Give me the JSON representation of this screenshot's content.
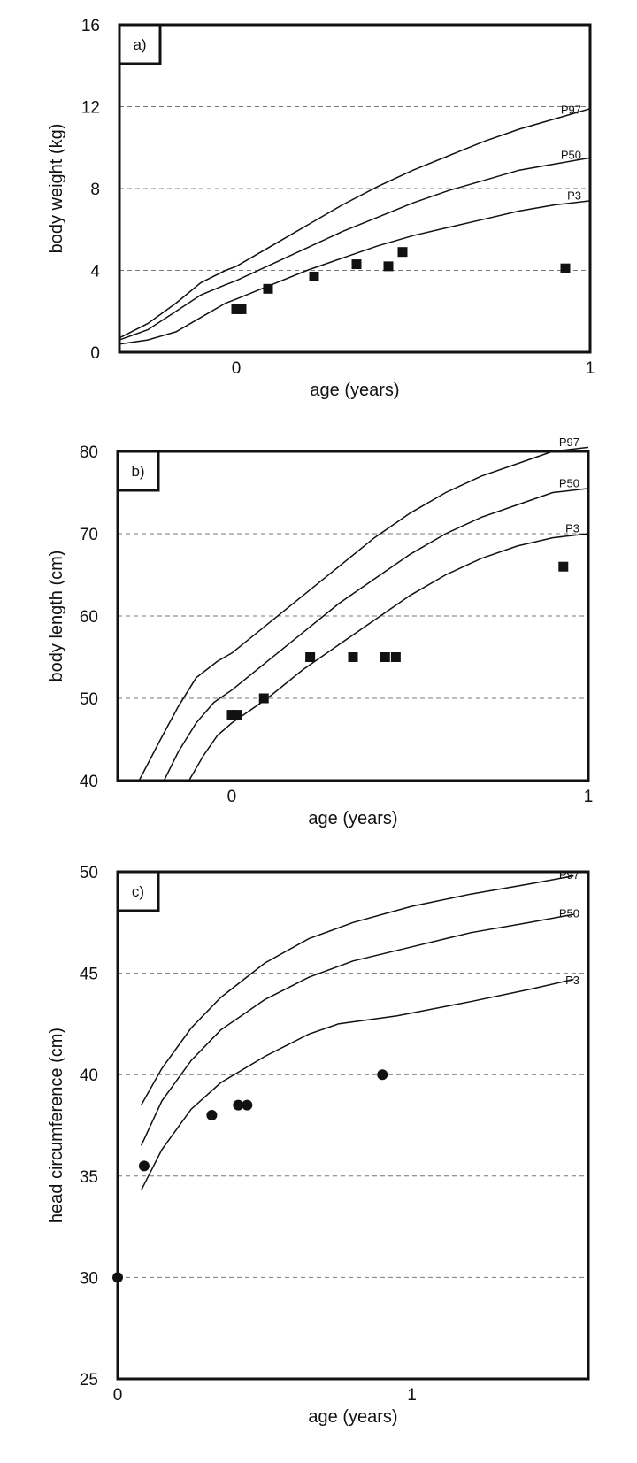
{
  "chart_data": [
    {
      "type": "line",
      "panel_label": "a)",
      "xlabel": "age (years)",
      "ylabel": "body weight (kg)",
      "xlim": [
        -0.33,
        1.0
      ],
      "ylim": [
        0,
        16
      ],
      "xticks": [
        0,
        1
      ],
      "yticks": [
        0,
        4,
        8,
        12,
        16
      ],
      "grid_dashed_y": [
        4,
        8,
        12
      ],
      "marker": "square",
      "series": [
        {
          "name": "P97",
          "x": [
            -0.33,
            -0.25,
            -0.17,
            -0.1,
            -0.03,
            0.0,
            0.1,
            0.2,
            0.3,
            0.4,
            0.5,
            0.6,
            0.7,
            0.8,
            0.9,
            1.0
          ],
          "y": [
            0.7,
            1.4,
            2.4,
            3.4,
            4.0,
            4.2,
            5.2,
            6.2,
            7.2,
            8.1,
            8.9,
            9.6,
            10.3,
            10.9,
            11.4,
            11.9
          ]
        },
        {
          "name": "P50",
          "x": [
            -0.33,
            -0.25,
            -0.17,
            -0.1,
            -0.03,
            0.0,
            0.1,
            0.2,
            0.3,
            0.4,
            0.5,
            0.6,
            0.7,
            0.8,
            0.9,
            1.0
          ],
          "y": [
            0.6,
            1.1,
            2.0,
            2.8,
            3.3,
            3.5,
            4.3,
            5.1,
            5.9,
            6.6,
            7.3,
            7.9,
            8.4,
            8.9,
            9.2,
            9.5
          ]
        },
        {
          "name": "P3",
          "x": [
            -0.33,
            -0.25,
            -0.17,
            -0.1,
            -0.03,
            0.0,
            0.1,
            0.2,
            0.3,
            0.4,
            0.5,
            0.6,
            0.7,
            0.8,
            0.9,
            1.0
          ],
          "y": [
            0.4,
            0.6,
            1.0,
            1.7,
            2.4,
            2.6,
            3.3,
            4.0,
            4.6,
            5.2,
            5.7,
            6.1,
            6.5,
            6.9,
            7.2,
            7.4
          ]
        }
      ],
      "points": {
        "x": [
          0.0,
          0.015,
          0.09,
          0.22,
          0.34,
          0.43,
          0.47,
          0.93
        ],
        "y": [
          2.1,
          2.1,
          3.1,
          3.7,
          4.3,
          4.2,
          4.9,
          4.1
        ]
      }
    },
    {
      "type": "line",
      "panel_label": "b)",
      "xlabel": "age (years)",
      "ylabel": "body length (cm)",
      "xlim": [
        -0.32,
        1.0
      ],
      "ylim": [
        40,
        80
      ],
      "xticks": [
        0,
        1
      ],
      "yticks": [
        40,
        50,
        60,
        70,
        80
      ],
      "grid_dashed_y": [
        50,
        60,
        70
      ],
      "marker": "square",
      "series": [
        {
          "name": "P97",
          "x": [
            -0.26,
            -0.2,
            -0.15,
            -0.1,
            -0.04,
            0.0,
            0.1,
            0.2,
            0.3,
            0.4,
            0.5,
            0.6,
            0.7,
            0.8,
            0.9,
            1.0
          ],
          "y": [
            40.0,
            45.0,
            49.0,
            52.5,
            54.5,
            55.5,
            59.0,
            62.5,
            66.0,
            69.5,
            72.5,
            75.0,
            77.0,
            78.5,
            80.0,
            80.5
          ]
        },
        {
          "name": "P50",
          "x": [
            -0.19,
            -0.15,
            -0.1,
            -0.05,
            0.0,
            0.1,
            0.2,
            0.3,
            0.4,
            0.5,
            0.6,
            0.7,
            0.8,
            0.9,
            1.0
          ],
          "y": [
            40.0,
            43.5,
            47.0,
            49.5,
            51.0,
            54.5,
            58.0,
            61.5,
            64.5,
            67.5,
            70.0,
            72.0,
            73.5,
            75.0,
            75.5
          ]
        },
        {
          "name": "P3",
          "x": [
            -0.12,
            -0.08,
            -0.04,
            0.0,
            0.1,
            0.2,
            0.3,
            0.4,
            0.5,
            0.6,
            0.7,
            0.8,
            0.9,
            1.0
          ],
          "y": [
            40.0,
            43.0,
            45.5,
            47.0,
            50.0,
            53.5,
            56.5,
            59.5,
            62.5,
            65.0,
            67.0,
            68.5,
            69.5,
            70.0
          ]
        }
      ],
      "points": {
        "x": [
          0.0,
          0.015,
          0.09,
          0.22,
          0.34,
          0.43,
          0.46,
          0.93
        ],
        "y": [
          48,
          48,
          50,
          55,
          55,
          55,
          55,
          66
        ]
      }
    },
    {
      "type": "line",
      "panel_label": "c)",
      "xlabel": "age (years)",
      "ylabel": "head circumference (cm)",
      "xlim": [
        0,
        1.6
      ],
      "ylim": [
        25,
        50
      ],
      "xticks": [
        0,
        1
      ],
      "yticks": [
        25,
        30,
        35,
        40,
        45,
        50
      ],
      "grid_dashed_y": [
        30,
        35,
        40,
        45
      ],
      "marker": "circle",
      "series": [
        {
          "name": "P97",
          "x": [
            0.08,
            0.15,
            0.25,
            0.35,
            0.5,
            0.65,
            0.8,
            1.0,
            1.2,
            1.4,
            1.55
          ],
          "y": [
            38.5,
            40.3,
            42.3,
            43.8,
            45.5,
            46.7,
            47.5,
            48.3,
            48.9,
            49.4,
            49.8
          ]
        },
        {
          "name": "P50",
          "x": [
            0.08,
            0.15,
            0.25,
            0.35,
            0.5,
            0.65,
            0.8,
            1.0,
            1.2,
            1.4,
            1.55
          ],
          "y": [
            36.5,
            38.7,
            40.7,
            42.2,
            43.7,
            44.8,
            45.6,
            46.3,
            47.0,
            47.5,
            47.9
          ]
        },
        {
          "name": "P3",
          "x": [
            0.08,
            0.15,
            0.25,
            0.35,
            0.5,
            0.65,
            0.75,
            0.95,
            1.2,
            1.4,
            1.55
          ],
          "y": [
            34.3,
            36.3,
            38.3,
            39.6,
            40.9,
            42.0,
            42.5,
            42.9,
            43.6,
            44.2,
            44.7
          ]
        }
      ],
      "points": {
        "x": [
          0.0,
          0.09,
          0.32,
          0.41,
          0.44,
          0.9
        ],
        "y": [
          30,
          35.5,
          38,
          38.5,
          38.5,
          40
        ]
      }
    }
  ]
}
